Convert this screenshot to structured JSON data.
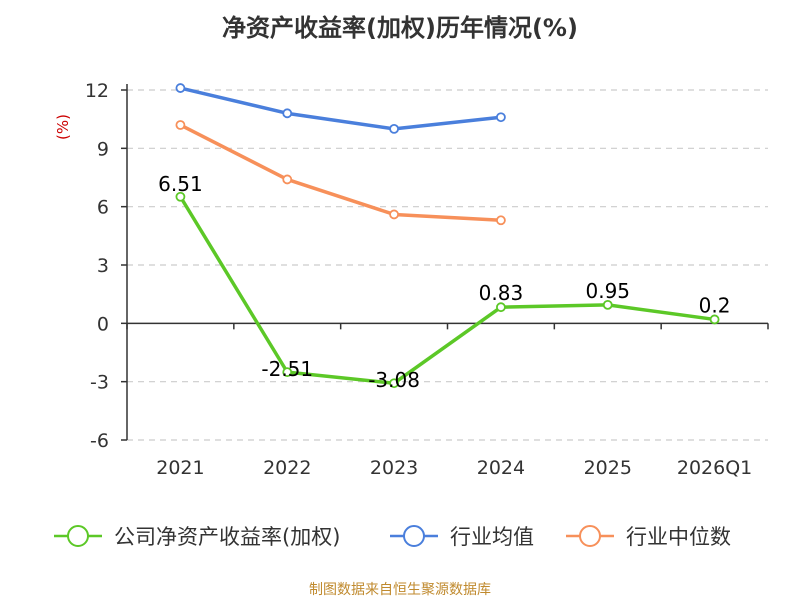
{
  "chart_data": {
    "type": "line",
    "title": "净资产收益率(加权)历年情况(%)",
    "ylabel": "(%)",
    "categories": [
      "2021",
      "2022",
      "2023",
      "2024",
      "2025",
      "2026Q1"
    ],
    "ylim": [
      -6,
      12
    ],
    "yticks": [
      "12",
      "9",
      "6",
      "3",
      "0",
      "-3",
      "-6"
    ],
    "grid": true,
    "legend_position": "bottom",
    "series": [
      {
        "name": "公司净资产收益率(加权)",
        "color": "#5cc827",
        "values": [
          6.51,
          -2.51,
          -3.08,
          0.83,
          0.95,
          0.2
        ],
        "labels": [
          "6.51",
          "-2.51",
          "-3.08",
          "0.83",
          "0.95",
          "0.2"
        ]
      },
      {
        "name": "行业均值",
        "color": "#4a7fdc",
        "values": [
          12.1,
          10.8,
          10.0,
          10.6,
          null,
          null
        ],
        "labels": []
      },
      {
        "name": "行业中位数",
        "color": "#f7905a",
        "values": [
          10.2,
          7.4,
          5.6,
          5.3,
          null,
          null
        ],
        "labels": []
      }
    ],
    "source": "制图数据来自恒生聚源数据库"
  }
}
